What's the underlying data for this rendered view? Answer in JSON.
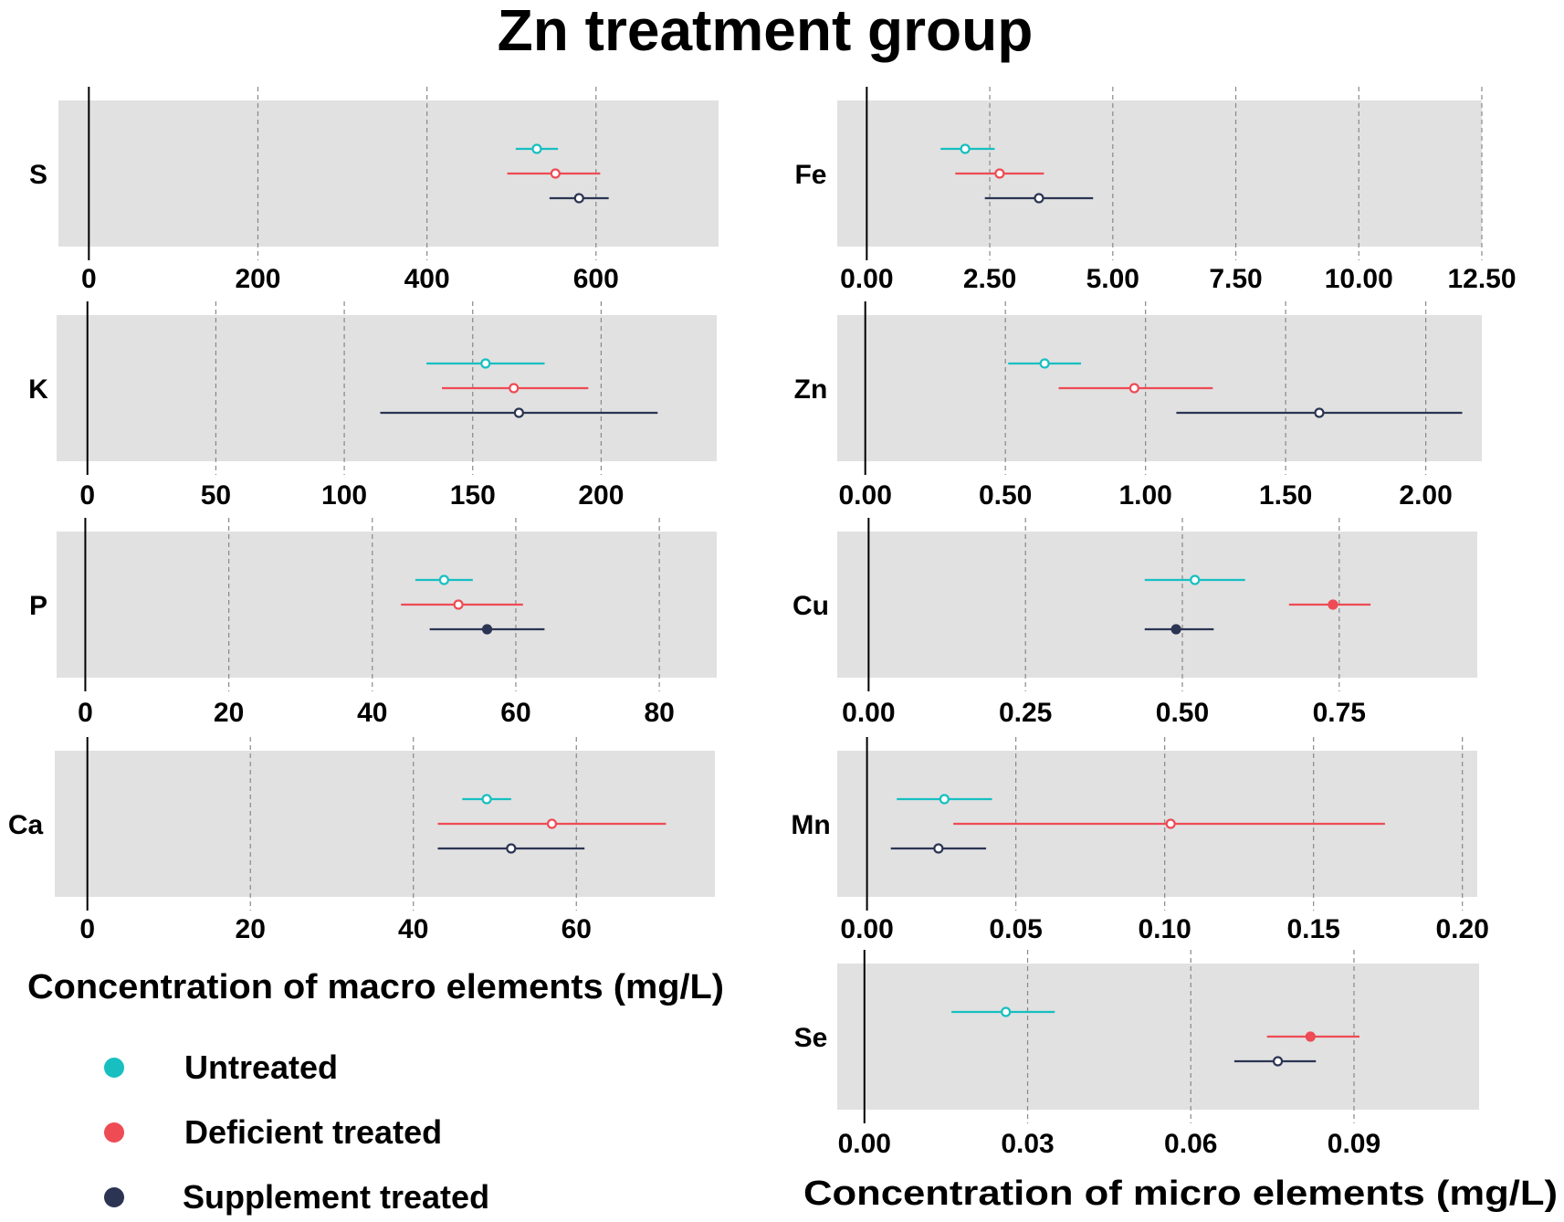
{
  "title": "Zn treatment group",
  "colors": {
    "untreated": "#17bfc1",
    "deficient": "#ee4b55",
    "supplement": "#2b3553",
    "panel": "#e1e1e1",
    "gridline": "#888888"
  },
  "legend": [
    {
      "key": "untreated",
      "label": "Untreated"
    },
    {
      "key": "deficient",
      "label": "Deficient treated"
    },
    {
      "key": "supplement",
      "label": "Supplement treated"
    }
  ],
  "macro_xlabel": "Concentration of macro elements (mg/L)",
  "micro_xlabel": "Concentration of micro elements (mg/L)",
  "chart_data": [
    {
      "type": "forest",
      "element": "S",
      "group": "macro",
      "xlim": [
        -36,
        745
      ],
      "ticks": [
        0,
        200,
        400,
        600
      ],
      "tick_labels": [
        "0",
        "200",
        "400",
        "600"
      ],
      "series": [
        {
          "key": "untreated",
          "est": 530,
          "lo": 505,
          "hi": 555,
          "filled": false
        },
        {
          "key": "deficient",
          "est": 552,
          "lo": 495,
          "hi": 605,
          "filled": false
        },
        {
          "key": "supplement",
          "est": 580,
          "lo": 545,
          "hi": 615,
          "filled": false
        }
      ]
    },
    {
      "type": "forest",
      "element": "K",
      "group": "macro",
      "xlim": [
        -12,
        245
      ],
      "ticks": [
        0,
        50,
        100,
        150,
        200
      ],
      "tick_labels": [
        "0",
        "50",
        "100",
        "150",
        "200"
      ],
      "series": [
        {
          "key": "untreated",
          "est": 155,
          "lo": 132,
          "hi": 178,
          "filled": false
        },
        {
          "key": "deficient",
          "est": 166,
          "lo": 138,
          "hi": 195,
          "filled": false
        },
        {
          "key": "supplement",
          "est": 168,
          "lo": 114,
          "hi": 222,
          "filled": false
        }
      ]
    },
    {
      "type": "forest",
      "element": "P",
      "group": "macro",
      "xlim": [
        -4,
        88
      ],
      "ticks": [
        0,
        20,
        40,
        60,
        80
      ],
      "tick_labels": [
        "0",
        "20",
        "40",
        "60",
        "80"
      ],
      "series": [
        {
          "key": "untreated",
          "est": 50,
          "lo": 46,
          "hi": 54,
          "filled": false
        },
        {
          "key": "deficient",
          "est": 52,
          "lo": 44,
          "hi": 61,
          "filled": false
        },
        {
          "key": "supplement",
          "est": 56,
          "lo": 48,
          "hi": 64,
          "filled": true
        }
      ]
    },
    {
      "type": "forest",
      "element": "Ca",
      "group": "macro",
      "xlim": [
        -4,
        77
      ],
      "ticks": [
        0,
        20,
        40,
        60
      ],
      "tick_labels": [
        "0",
        "20",
        "40",
        "60"
      ],
      "series": [
        {
          "key": "untreated",
          "est": 49,
          "lo": 46,
          "hi": 52,
          "filled": false
        },
        {
          "key": "deficient",
          "est": 57,
          "lo": 43,
          "hi": 71,
          "filled": false
        },
        {
          "key": "supplement",
          "est": 52,
          "lo": 43,
          "hi": 61,
          "filled": false
        }
      ]
    },
    {
      "type": "forest",
      "element": "Fe",
      "group": "micro",
      "xlim": [
        -0.6,
        12.5
      ],
      "ticks": [
        0,
        2.5,
        5,
        7.5,
        10,
        12.5
      ],
      "tick_labels": [
        "0.00",
        "2.50",
        "5.00",
        "7.50",
        "10.00",
        "12.50"
      ],
      "series": [
        {
          "key": "untreated",
          "est": 2.0,
          "lo": 1.5,
          "hi": 2.6,
          "filled": false
        },
        {
          "key": "deficient",
          "est": 2.7,
          "lo": 1.8,
          "hi": 3.6,
          "filled": false
        },
        {
          "key": "supplement",
          "est": 3.5,
          "lo": 2.4,
          "hi": 4.6,
          "filled": false
        }
      ]
    },
    {
      "type": "forest",
      "element": "Zn",
      "group": "micro",
      "xlim": [
        -0.1,
        2.2
      ],
      "ticks": [
        0,
        0.5,
        1,
        1.5,
        2
      ],
      "tick_labels": [
        "0.00",
        "0.50",
        "1.00",
        "1.50",
        "2.00"
      ],
      "series": [
        {
          "key": "untreated",
          "est": 0.64,
          "lo": 0.51,
          "hi": 0.77,
          "filled": false
        },
        {
          "key": "deficient",
          "est": 0.96,
          "lo": 0.69,
          "hi": 1.24,
          "filled": false
        },
        {
          "key": "supplement",
          "est": 1.62,
          "lo": 1.11,
          "hi": 2.13,
          "filled": false
        }
      ]
    },
    {
      "type": "forest",
      "element": "Cu",
      "group": "micro",
      "xlim": [
        -0.05,
        0.97
      ],
      "ticks": [
        0,
        0.25,
        0.5,
        0.75
      ],
      "tick_labels": [
        "0.00",
        "0.25",
        "0.50",
        "0.75"
      ],
      "series": [
        {
          "key": "untreated",
          "est": 0.52,
          "lo": 0.44,
          "hi": 0.6,
          "filled": false
        },
        {
          "key": "deficient",
          "est": 0.74,
          "lo": 0.67,
          "hi": 0.8,
          "filled": true
        },
        {
          "key": "supplement",
          "est": 0.49,
          "lo": 0.44,
          "hi": 0.55,
          "filled": true
        }
      ]
    },
    {
      "type": "forest",
      "element": "Mn",
      "group": "micro",
      "xlim": [
        -0.01,
        0.205
      ],
      "ticks": [
        0,
        0.05,
        0.1,
        0.15,
        0.2
      ],
      "tick_labels": [
        "0.00",
        "0.05",
        "0.10",
        "0.15",
        "0.20"
      ],
      "series": [
        {
          "key": "untreated",
          "est": 0.026,
          "lo": 0.01,
          "hi": 0.042,
          "filled": false
        },
        {
          "key": "deficient",
          "est": 0.102,
          "lo": 0.029,
          "hi": 0.174,
          "filled": false
        },
        {
          "key": "supplement",
          "est": 0.024,
          "lo": 0.008,
          "hi": 0.04,
          "filled": false
        }
      ]
    },
    {
      "type": "forest",
      "element": "Se",
      "group": "micro",
      "xlim": [
        -0.005,
        0.113
      ],
      "ticks": [
        0,
        0.03,
        0.06,
        0.09
      ],
      "tick_labels": [
        "0.00",
        "0.03",
        "0.06",
        "0.09"
      ],
      "series": [
        {
          "key": "untreated",
          "est": 0.026,
          "lo": 0.016,
          "hi": 0.035,
          "filled": false
        },
        {
          "key": "deficient",
          "est": 0.082,
          "lo": 0.074,
          "hi": 0.091,
          "filled": true
        },
        {
          "key": "supplement",
          "est": 0.076,
          "lo": 0.068,
          "hi": 0.083,
          "filled": false
        }
      ]
    }
  ]
}
